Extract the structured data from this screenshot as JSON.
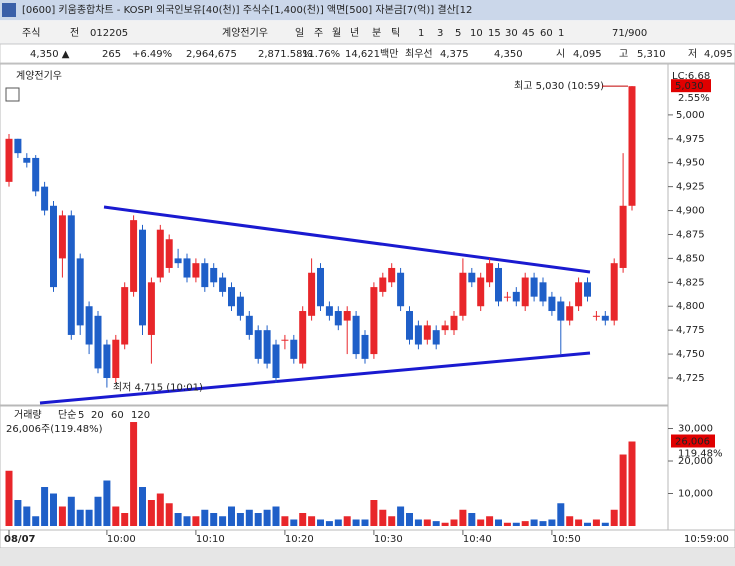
{
  "window": {
    "title": "[0600] 키움종합차트 - KOSPI 외국인보유[40(천)] 주식수[1,400(천)] 액면[500] 자본금[7(억)] 결산[12"
  },
  "toolbar": {
    "items": [
      "주식",
      "전",
      "012205",
      "계양전기우",
      "일",
      "주",
      "월",
      "년",
      "분",
      "틱",
      "1",
      "3",
      "5",
      "10",
      "15",
      "30",
      "45",
      "60",
      "1",
      "71/900"
    ]
  },
  "quote": {
    "fields": [
      "4,350 ▲",
      "265",
      "+6.49%",
      "2,964,675",
      "2,871.58%",
      "11.76%",
      "14,621백만",
      "최우선",
      "4,375",
      "4,350",
      "시",
      "4,095",
      "고",
      "5,310",
      "저",
      "4,095"
    ]
  },
  "chart_data": [
    {
      "type": "candlestick",
      "title": "계양전기우",
      "up_color": "#e8262a",
      "down_color": "#1f5fc8",
      "categories": [
        "08/07",
        null,
        null,
        null,
        null,
        null,
        null,
        null,
        null,
        null,
        null,
        "10:00",
        null,
        null,
        null,
        null,
        null,
        null,
        null,
        null,
        null,
        "10:10",
        null,
        null,
        null,
        null,
        null,
        null,
        null,
        null,
        null,
        "10:20",
        null,
        null,
        null,
        null,
        null,
        null,
        null,
        null,
        null,
        "10:30",
        null,
        null,
        null,
        null,
        null,
        null,
        null,
        null,
        null,
        "10:40",
        null,
        null,
        null,
        null,
        null,
        null,
        null,
        null,
        null,
        "10:50",
        null,
        null,
        null,
        null,
        null,
        null,
        null,
        null,
        null
      ],
      "open": [
        4930,
        4975,
        4955,
        4955,
        4925,
        4905,
        4850,
        4895,
        4850,
        4800,
        4790,
        4760,
        4725,
        4760,
        4815,
        4880,
        4770,
        4830,
        4840,
        4850,
        4850,
        4830,
        4845,
        4840,
        4830,
        4820,
        4810,
        4790,
        4775,
        4775,
        4760,
        4765,
        4765,
        4740,
        4790,
        4840,
        4800,
        4795,
        4785,
        4790,
        4770,
        4750,
        4815,
        4825,
        4835,
        4795,
        4780,
        4765,
        4775,
        4775,
        4775,
        4790,
        4835,
        4800,
        4825,
        4840,
        4810,
        4815,
        4800,
        4830,
        4825,
        4810,
        4805,
        4785,
        4800,
        4825,
        4790,
        4790,
        4785,
        4840,
        4905
      ],
      "high": [
        4980,
        4975,
        4960,
        4958,
        4930,
        4910,
        4900,
        4900,
        4855,
        4805,
        4795,
        4765,
        4770,
        4825,
        4895,
        4885,
        4830,
        4885,
        4875,
        4860,
        4855,
        4850,
        4850,
        4845,
        4835,
        4825,
        4815,
        4795,
        4780,
        4780,
        4765,
        4770,
        4770,
        4800,
        4850,
        4845,
        4805,
        4800,
        4800,
        4795,
        4775,
        4825,
        4835,
        4845,
        4840,
        4800,
        4785,
        4785,
        4780,
        4785,
        4795,
        4850,
        4840,
        4835,
        4850,
        4845,
        4815,
        4820,
        4835,
        4835,
        4830,
        4815,
        4810,
        4805,
        4830,
        4830,
        4795,
        4795,
        4850,
        4960,
        5030
      ],
      "low": [
        4925,
        4955,
        4945,
        4915,
        4895,
        4815,
        4830,
        4765,
        4770,
        4750,
        4730,
        4715,
        4720,
        4755,
        4810,
        4770,
        4740,
        4825,
        4835,
        4840,
        4825,
        4825,
        4815,
        4820,
        4810,
        4795,
        4785,
        4765,
        4740,
        4735,
        4720,
        4755,
        4740,
        4735,
        4785,
        4795,
        4785,
        4775,
        4750,
        4745,
        4740,
        4745,
        4810,
        4820,
        4795,
        4760,
        4755,
        4760,
        4755,
        4770,
        4770,
        4785,
        4820,
        4795,
        4820,
        4800,
        4805,
        4800,
        4795,
        4805,
        4800,
        4790,
        4750,
        4780,
        4795,
        4805,
        4785,
        4780,
        4780,
        4835,
        4900
      ],
      "close": [
        4975,
        4960,
        4950,
        4920,
        4900,
        4820,
        4895,
        4770,
        4780,
        4760,
        4735,
        4725,
        4765,
        4820,
        4890,
        4780,
        4825,
        4880,
        4870,
        4845,
        4830,
        4845,
        4820,
        4825,
        4815,
        4800,
        4790,
        4770,
        4745,
        4740,
        4725,
        4765,
        4745,
        4795,
        4835,
        4800,
        4790,
        4780,
        4795,
        4750,
        4745,
        4820,
        4830,
        4840,
        4800,
        4765,
        4760,
        4780,
        4760,
        4780,
        4790,
        4835,
        4825,
        4830,
        4845,
        4805,
        4810,
        4805,
        4830,
        4810,
        4805,
        4795,
        4785,
        4800,
        4825,
        4810,
        4790,
        4785,
        4845,
        4905,
        5030
      ],
      "ylim": [
        4702,
        5049
      ],
      "yticks": [
        {
          "value": 4725,
          "label": "4,725"
        },
        {
          "value": 4750,
          "label": "4,750"
        },
        {
          "value": 4775,
          "label": "4,775"
        },
        {
          "value": 4800,
          "label": "4,800"
        },
        {
          "value": 4825,
          "label": "4,825"
        },
        {
          "value": 4850,
          "label": "4,850"
        },
        {
          "value": 4875,
          "label": "4,875"
        },
        {
          "value": 4900,
          "label": "4,900"
        },
        {
          "value": 4925,
          "label": "4,925"
        },
        {
          "value": 4950,
          "label": "4,950"
        },
        {
          "value": 4975,
          "label": "4,975"
        },
        {
          "value": 5000,
          "label": "5,000"
        }
      ],
      "annotations": [
        {
          "text": "최고 5,030 (10:59)",
          "value": 5030
        },
        {
          "text": "최저 4,715 (10:01)",
          "value": 4715
        }
      ],
      "last_label": {
        "value": 5030,
        "label": "5,030"
      },
      "axis_notes": [
        "LC:6.68",
        "2.55%"
      ],
      "x_end_label": "10:59:00"
    },
    {
      "type": "bar",
      "title": "거래량",
      "legend": [
        "단순",
        "5",
        "20",
        "60",
        "120"
      ],
      "legend_colors": [
        "#b050b0",
        "#b050b0",
        "#c8a000",
        "#20a040",
        "#909090"
      ],
      "info": "26,006주(119.48%)",
      "values": [
        17000,
        8000,
        6000,
        3000,
        12000,
        10000,
        6000,
        9000,
        5000,
        5000,
        9000,
        14000,
        6000,
        4000,
        32000,
        12000,
        8000,
        10000,
        7000,
        4000,
        3000,
        3000,
        5000,
        4000,
        3000,
        6000,
        4000,
        5000,
        4000,
        5000,
        6000,
        3000,
        2000,
        4000,
        3000,
        2000,
        1500,
        2000,
        3000,
        2000,
        2000,
        8000,
        5000,
        3000,
        6000,
        4000,
        2000,
        2000,
        1500,
        1000,
        2000,
        5000,
        4000,
        2000,
        3000,
        2000,
        1000,
        1000,
        1500,
        2000,
        1500,
        2000,
        7000,
        3000,
        2000,
        1000,
        2000,
        1000,
        5000,
        22000,
        26006
      ],
      "value_labels": [
        null,
        null,
        null,
        null,
        null,
        null,
        null,
        null,
        null,
        null,
        null,
        null,
        null,
        null,
        null,
        null,
        null,
        null,
        null,
        null,
        null,
        null,
        null,
        null,
        null,
        null,
        null,
        null,
        null,
        null,
        null,
        null,
        null,
        null,
        null,
        null,
        null,
        null,
        null,
        null,
        null,
        null,
        null,
        null,
        null,
        null,
        null,
        null,
        null,
        null,
        null,
        null,
        null,
        null,
        null,
        null,
        null,
        null,
        null,
        null,
        null,
        null,
        null,
        null,
        null,
        null,
        null,
        null,
        null,
        null,
        "26,006"
      ],
      "ratio_label": "119.48%",
      "ylim": [
        0,
        35700
      ],
      "yticks": [
        {
          "value": 10000,
          "label": "10,000"
        },
        {
          "value": 20000,
          "label": "20,000"
        },
        {
          "value": 30000,
          "label": "30,000"
        }
      ]
    }
  ]
}
